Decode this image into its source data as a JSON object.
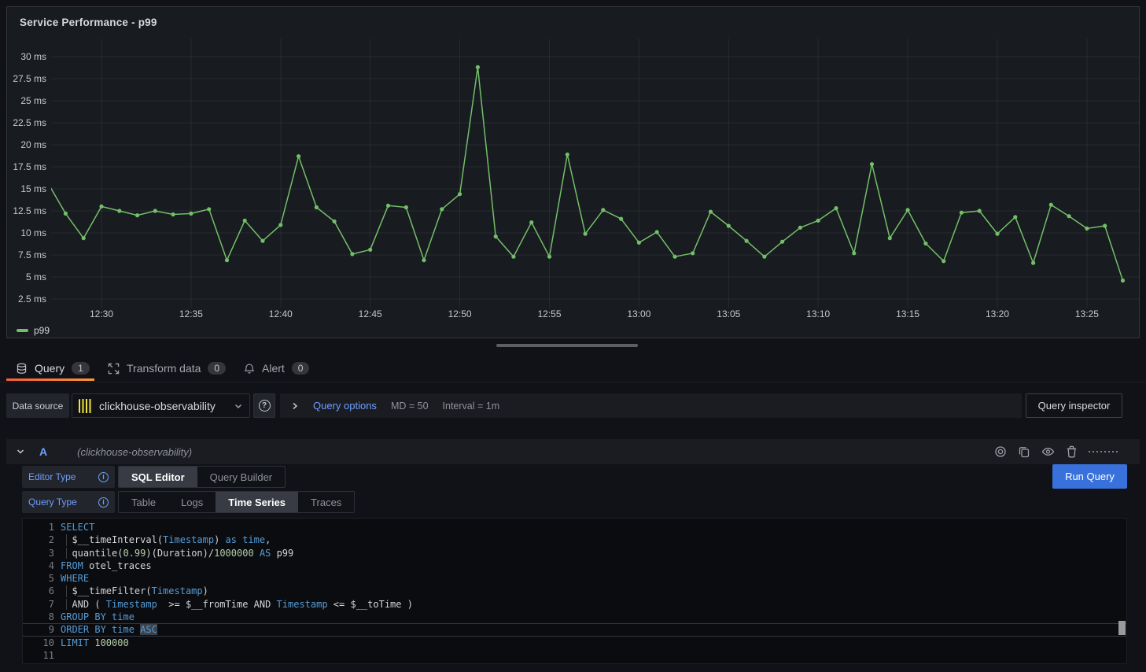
{
  "panel": {
    "title": "Service Performance - p99"
  },
  "chart_data": {
    "type": "line",
    "title": "Service Performance - p99",
    "series": [
      {
        "name": "p99",
        "color": "#73bf69"
      }
    ],
    "unit": "ms",
    "x_ticks": [
      "12:30",
      "12:35",
      "12:40",
      "12:45",
      "12:50",
      "12:55",
      "13:00",
      "13:05",
      "13:10",
      "13:15",
      "13:20",
      "13:25"
    ],
    "y_ticks": [
      "30 ms",
      "27.5 ms",
      "25 ms",
      "22.5 ms",
      "20 ms",
      "17.5 ms",
      "15 ms",
      "12.5 ms",
      "10 ms",
      "7.5 ms",
      "5 ms",
      "2.5 ms"
    ],
    "y_axis": {
      "min": 2.5,
      "max": 30,
      "step": 2.5
    },
    "grid": true,
    "legend_position": "bottom-left",
    "times": [
      "12:27",
      "12:28",
      "12:29",
      "12:30",
      "12:31",
      "12:32",
      "12:33",
      "12:34",
      "12:35",
      "12:36",
      "12:37",
      "12:38",
      "12:39",
      "12:40",
      "12:41",
      "12:42",
      "12:43",
      "12:44",
      "12:45",
      "12:46",
      "12:47",
      "12:48",
      "12:49",
      "12:50",
      "12:51",
      "12:52",
      "12:53",
      "12:54",
      "12:55",
      "12:56",
      "12:57",
      "12:58",
      "12:59",
      "13:00",
      "13:01",
      "13:02",
      "13:03",
      "13:04",
      "13:05",
      "13:06",
      "13:07",
      "13:08",
      "13:09",
      "13:10",
      "13:11",
      "13:12",
      "13:13",
      "13:14",
      "13:15",
      "13:16",
      "13:17",
      "13:18",
      "13:19",
      "13:20",
      "13:21",
      "13:22",
      "13:23",
      "13:24",
      "13:25",
      "13:26",
      "13:27"
    ],
    "values": [
      15.7,
      12.2,
      9.4,
      13.0,
      12.5,
      12.0,
      12.5,
      12.1,
      12.2,
      12.7,
      6.9,
      11.4,
      9.1,
      10.9,
      18.7,
      12.9,
      11.3,
      7.6,
      8.1,
      13.1,
      12.9,
      6.9,
      12.7,
      14.4,
      28.8,
      9.6,
      7.3,
      11.2,
      7.3,
      18.9,
      9.9,
      12.6,
      11.6,
      8.9,
      10.1,
      7.3,
      7.7,
      12.4,
      10.8,
      9.1,
      7.3,
      9.0,
      10.6,
      11.4,
      12.8,
      7.7,
      17.8,
      9.4,
      12.6,
      8.8,
      6.8,
      12.3,
      12.5,
      9.9,
      11.8,
      6.6,
      13.2,
      11.9,
      10.5,
      10.8,
      4.6
    ]
  },
  "legend": {
    "label": "p99"
  },
  "tabs": [
    {
      "label": "Query",
      "badge": "1",
      "icon": "database-icon",
      "active": true
    },
    {
      "label": "Transform data",
      "badge": "0",
      "icon": "transform-icon",
      "active": false
    },
    {
      "label": "Alert",
      "badge": "0",
      "icon": "bell-icon",
      "active": false
    }
  ],
  "datasource_row": {
    "label": "Data source",
    "value": "clickhouse-observability",
    "query_options_label": "Query options",
    "md": "MD = 50",
    "interval": "Interval = 1m",
    "inspector_label": "Query inspector"
  },
  "query_row": {
    "ref_id": "A",
    "datasource_hint": "(clickhouse-observability)",
    "run_button": "Run Query",
    "editor_type_label": "Editor Type",
    "editor_types": [
      "SQL Editor",
      "Query Builder"
    ],
    "editor_type_selected": "SQL Editor",
    "query_type_label": "Query Type",
    "query_types": [
      "Table",
      "Logs",
      "Time Series",
      "Traces"
    ],
    "query_type_selected": "Time Series"
  },
  "sql": {
    "lines": [
      {
        "n": "1",
        "tokens": [
          [
            "SELECT",
            "k"
          ]
        ]
      },
      {
        "n": "2",
        "guide": true,
        "tokens": [
          [
            "  $__timeInterval(",
            "w"
          ],
          [
            "Timestamp",
            "k"
          ],
          [
            ") ",
            "w"
          ],
          [
            "as time",
            "k"
          ],
          [
            ",",
            "w"
          ]
        ]
      },
      {
        "n": "3",
        "guide": true,
        "tokens": [
          [
            "  quantile(",
            "w"
          ],
          [
            "0.99",
            "n"
          ],
          [
            ")(Duration)/",
            "w"
          ],
          [
            "1000000",
            "n"
          ],
          [
            " ",
            "w"
          ],
          [
            "AS",
            "k"
          ],
          [
            " p99",
            "w"
          ]
        ]
      },
      {
        "n": "4",
        "tokens": [
          [
            "FROM",
            "k"
          ],
          [
            " otel_traces",
            "w"
          ]
        ]
      },
      {
        "n": "5",
        "tokens": [
          [
            "WHERE",
            "k"
          ]
        ]
      },
      {
        "n": "6",
        "guide": true,
        "tokens": [
          [
            "  $__timeFilter(",
            "w"
          ],
          [
            "Timestamp",
            "k"
          ],
          [
            ")",
            "w"
          ]
        ]
      },
      {
        "n": "7",
        "guide": true,
        "tokens": [
          [
            "  AND ( ",
            "w"
          ],
          [
            "Timestamp",
            "k"
          ],
          [
            "  >= $__fromTime AND ",
            "w"
          ],
          [
            "Timestamp",
            "k"
          ],
          [
            " <= $__toTime )",
            "w"
          ]
        ]
      },
      {
        "n": "8",
        "tokens": [
          [
            "GROUP BY time",
            "k"
          ]
        ]
      },
      {
        "n": "9",
        "current": true,
        "tokens": [
          [
            "ORDER BY time ",
            "k"
          ],
          [
            "ASC",
            "k sel"
          ]
        ]
      },
      {
        "n": "10",
        "tokens": [
          [
            "LIMIT",
            "k"
          ],
          [
            " ",
            "w"
          ],
          [
            "100000",
            "n"
          ]
        ]
      },
      {
        "n": "11",
        "tokens": []
      }
    ]
  }
}
